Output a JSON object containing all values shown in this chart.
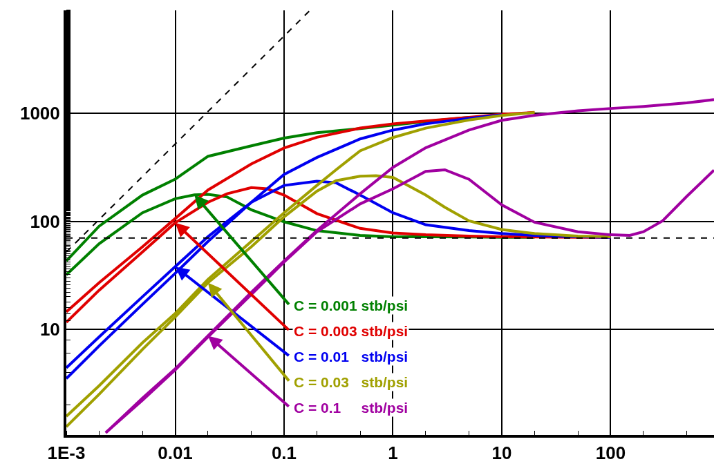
{
  "chart_data": {
    "type": "line",
    "log": "xy",
    "grid": true,
    "line_style": "solid",
    "marker": "none",
    "xlim": [
      0.001,
      890
    ],
    "ylim": [
      1.05,
      9000
    ],
    "xticks": [
      {
        "value": 0.001,
        "label": "1E-3"
      },
      0.01,
      0.1,
      1,
      10,
      100
    ],
    "yticks": [
      10,
      100,
      1000
    ],
    "series": [
      {
        "color": "#008000",
        "x": [
          0.001,
          0.002,
          0.005,
          0.01,
          0.02,
          0.05,
          0.1,
          0.2,
          0.5,
          1,
          2,
          5
        ],
        "values": [
          43,
          90,
          175,
          246,
          400,
          500,
          590,
          662,
          722,
          778,
          840,
          920
        ]
      },
      {
        "color": "#008000",
        "x": [
          0.001,
          0.002,
          0.005,
          0.01,
          0.015,
          0.02,
          0.03,
          0.05,
          0.1,
          0.2,
          0.5,
          1,
          2,
          5,
          10,
          20
        ],
        "values": [
          32,
          62,
          120,
          162,
          176,
          178,
          168,
          128,
          99,
          82,
          74,
          72,
          72,
          71.5,
          71,
          71
        ]
      },
      {
        "color": "#e00000",
        "x": [
          0.001,
          0.002,
          0.005,
          0.01,
          0.02,
          0.05,
          0.1,
          0.2,
          0.5,
          1,
          2,
          5,
          10,
          20
        ],
        "values": [
          14.5,
          27,
          58,
          106,
          195,
          340,
          478,
          600,
          730,
          800,
          850,
          920,
          980,
          1020
        ]
      },
      {
        "color": "#e00000",
        "x": [
          0.001,
          0.002,
          0.005,
          0.01,
          0.02,
          0.03,
          0.05,
          0.07,
          0.1,
          0.2,
          0.5,
          1,
          2,
          5,
          10,
          20,
          50,
          100
        ],
        "values": [
          11.6,
          23,
          52,
          97,
          150,
          180,
          205,
          200,
          175,
          118,
          86,
          78,
          75,
          73,
          72,
          71.5,
          71,
          71
        ]
      },
      {
        "color": "#0000f0",
        "x": [
          0.001,
          0.002,
          0.005,
          0.01,
          0.02,
          0.05,
          0.1,
          0.2,
          0.5,
          1,
          2,
          5,
          10
        ],
        "values": [
          4.4,
          8.5,
          20,
          38,
          72,
          150,
          272,
          390,
          580,
          700,
          800,
          900,
          970
        ]
      },
      {
        "color": "#0000f0",
        "x": [
          0.001,
          0.002,
          0.005,
          0.01,
          0.02,
          0.05,
          0.1,
          0.2,
          0.3,
          0.5,
          1,
          2,
          5,
          10,
          20,
          50,
          100
        ],
        "values": [
          3.5,
          7,
          17,
          33,
          65,
          150,
          215,
          235,
          228,
          175,
          120,
          93,
          82,
          77,
          74,
          72,
          71
        ]
      },
      {
        "color": "#a0a000",
        "x": [
          0.001,
          0.002,
          0.005,
          0.01,
          0.02,
          0.05,
          0.1,
          0.2,
          0.3,
          0.5,
          1,
          2,
          5,
          10,
          20
        ],
        "values": [
          1.56,
          3,
          7.5,
          14,
          29,
          65,
          120,
          215,
          300,
          450,
          597,
          730,
          870,
          957,
          1020
        ]
      },
      {
        "color": "#a0a000",
        "x": [
          0.001,
          0.002,
          0.005,
          0.01,
          0.02,
          0.05,
          0.1,
          0.2,
          0.3,
          0.5,
          0.7,
          1,
          2,
          3,
          5,
          10,
          20,
          50,
          100
        ],
        "values": [
          1.25,
          2.5,
          6.5,
          13,
          27,
          58,
          110,
          190,
          238,
          262,
          265,
          255,
          175,
          135,
          101,
          84,
          77,
          73,
          72
        ]
      },
      {
        "color": "#a000a0",
        "x": [
          0.0023,
          0.005,
          0.01,
          0.02,
          0.05,
          0.1,
          0.2,
          0.5,
          1,
          2,
          5,
          10,
          20,
          50,
          100,
          200,
          500,
          890
        ],
        "values": [
          1.1,
          2.3,
          4.3,
          8.7,
          22,
          43,
          82,
          180,
          316,
          480,
          700,
          863,
          960,
          1055,
          1110,
          1160,
          1250,
          1340
        ]
      },
      {
        "color": "#a000a0",
        "x": [
          0.0023,
          0.005,
          0.01,
          0.02,
          0.05,
          0.1,
          0.2,
          0.5,
          1,
          2,
          3,
          5,
          10,
          20,
          50,
          100,
          150,
          200,
          300,
          500,
          890
        ],
        "values": [
          1.1,
          2.2,
          4.2,
          8.5,
          21,
          42,
          80,
          145,
          200,
          290,
          300,
          245,
          142,
          98,
          80,
          75,
          74,
          80,
          101,
          170,
          298
        ]
      },
      {
        "type": "line",
        "color": "#000000",
        "line_style": "dashed",
        "x": [
          0.001,
          0.173
        ],
        "values": [
          52,
          9000
        ]
      }
    ],
    "ref_lines": [
      {
        "axis": "y",
        "value": 70,
        "color": "#000000",
        "line_style": "dashed"
      }
    ],
    "annotations": [
      {
        "text": "C = 0.001 stb/psi",
        "x": 0.015,
        "y": 176
      },
      {
        "text": "C = 0.003 stb/psi",
        "x": 0.01,
        "y": 97
      },
      {
        "text": "C = 0.01   stb/psi",
        "x": 0.01,
        "y": 38
      },
      {
        "text": "C = 0.03   stb/psi",
        "x": 0.02,
        "y": 27
      },
      {
        "text": "C = 0.1     stb/psi",
        "x": 0.02,
        "y": 8.7
      }
    ]
  }
}
